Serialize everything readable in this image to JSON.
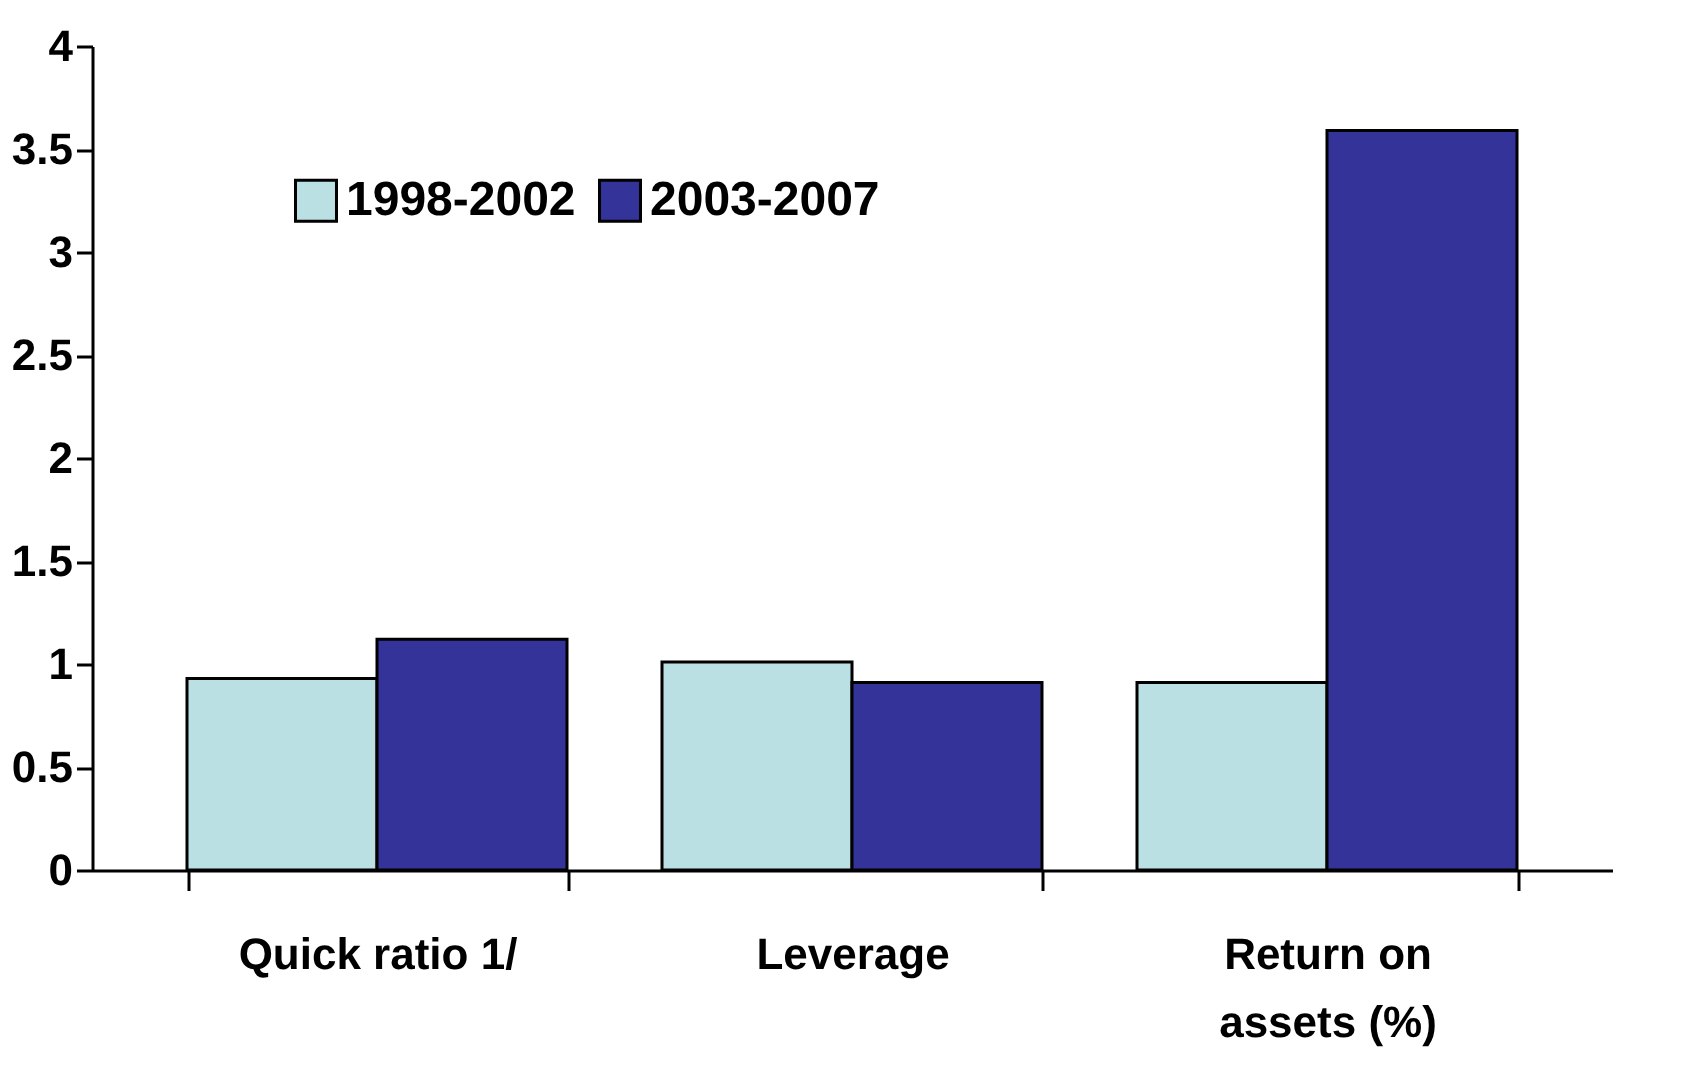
{
  "chart_data": {
    "type": "bar",
    "categories": [
      "Quick ratio 1/",
      "Leverage",
      "Return on assets (%)"
    ],
    "series": [
      {
        "name": "1998-2002",
        "color": "#bbe0e3",
        "values": [
          0.93,
          1.01,
          0.91
        ]
      },
      {
        "name": "2003-2007",
        "color": "#333399",
        "values": [
          1.12,
          0.91,
          3.59
        ]
      }
    ],
    "ylim": [
      0,
      4
    ],
    "yticks": [
      0,
      0.5,
      1,
      1.5,
      2,
      2.5,
      3,
      3.5,
      4
    ],
    "grid": false,
    "legend": "top left"
  }
}
